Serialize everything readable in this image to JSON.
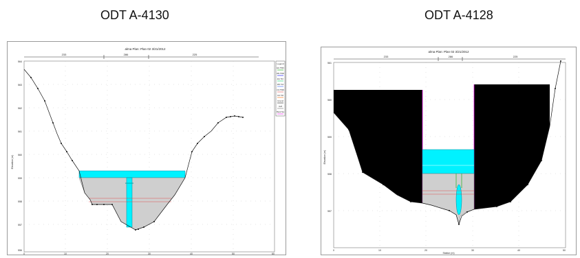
{
  "left": {
    "title": "ODT A-4130",
    "header": "alma     Plan: Plan 02     3/21/2012",
    "top_ticks": [
      "233",
      "286",
      "225"
    ],
    "y_ticks": [
      "564",
      "563",
      "562",
      "561",
      "560",
      "559",
      "558",
      "557",
      "556"
    ],
    "x_ticks": [
      "0",
      "10",
      "20",
      "30",
      "40",
      "50",
      "60"
    ],
    "ylabel": "Elevation (m)",
    "legend_title": "Legend",
    "legend_items": [
      "EG T500",
      "WS T500",
      "EG T10",
      "WS T10",
      "Crit T500",
      "Crit T10",
      "Ground",
      "Ineff",
      "Bank Sta"
    ]
  },
  "right": {
    "title": "ODT A-4128",
    "header": "alma     Plan: Plan 02     3/21/2012",
    "top_ticks": [
      "233",
      "286",
      "225"
    ],
    "y_ticks": [
      "561",
      "560",
      "559",
      "558",
      "557"
    ],
    "x_ticks": [
      "0",
      "10",
      "20",
      "30",
      "40",
      "50"
    ],
    "ylabel": "Elevation (m)",
    "xlabel": "Station (m)"
  },
  "colors": {
    "water": "#00f2ff",
    "fill": "#cfcfcf",
    "ground": "#000000",
    "crit": "#e05050",
    "bank": "#e000e0"
  }
}
